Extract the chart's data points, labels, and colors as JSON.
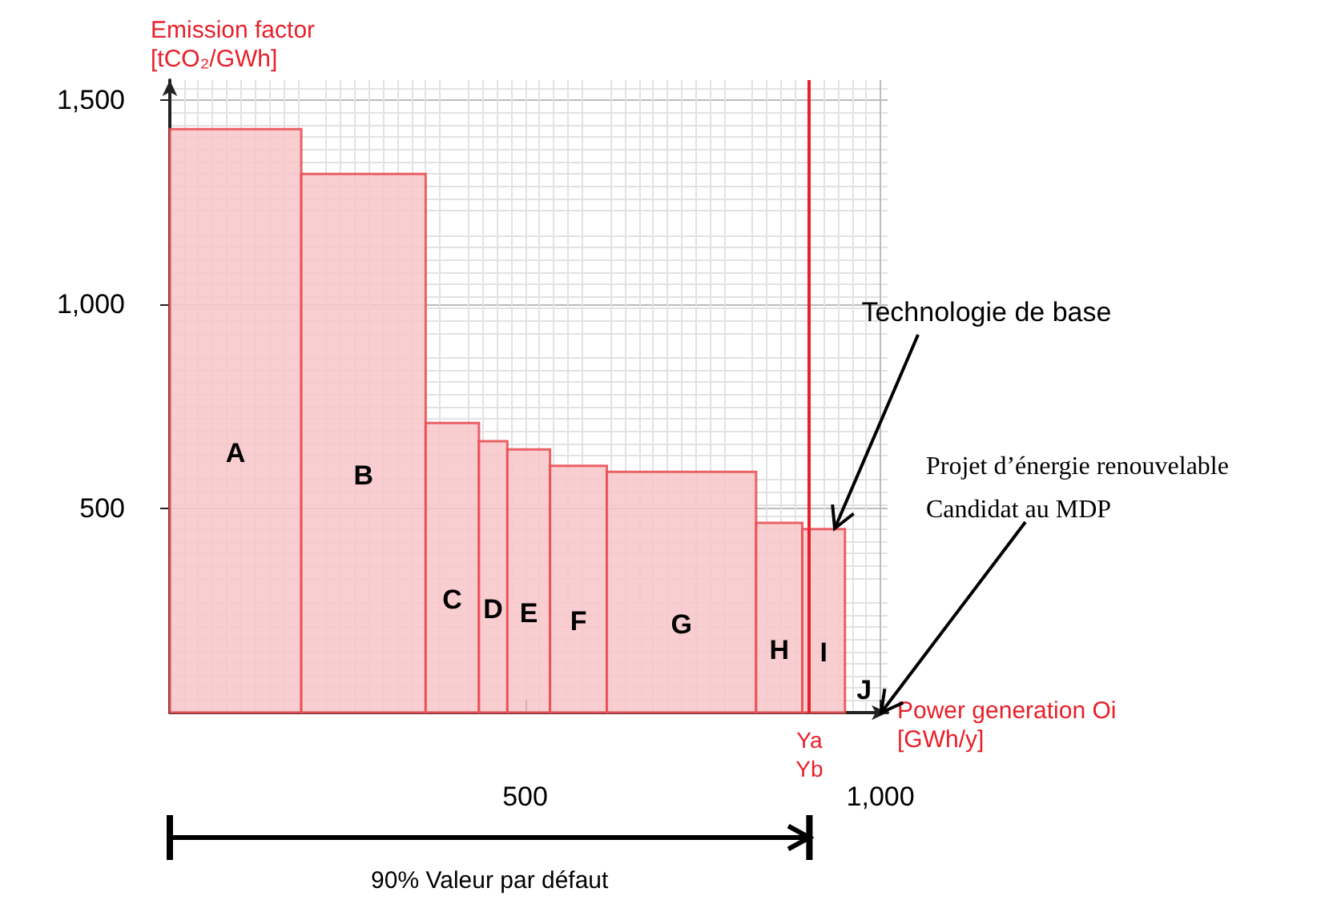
{
  "chart_data": {
    "type": "histogram",
    "xlabel": "Power generation Oi\n[GWh/y]",
    "ylabel": "Emission factor\n[tCO₂/GWh]",
    "bins": [
      0,
      185,
      360,
      435,
      475,
      535,
      615,
      825,
      890,
      950
    ],
    "values": [
      1430,
      1320,
      710,
      665,
      645,
      605,
      590,
      465,
      450
    ],
    "color": "#f8c6c8",
    "xlim": [
      0,
      1010
    ],
    "ylim": [
      0,
      1550
    ],
    "xticks": [
      500,
      {
        "value": 1000,
        "label": "1,000"
      }
    ],
    "yticks": [
      500,
      {
        "value": 1000,
        "label": "1,000"
      },
      {
        "value": 1500,
        "label": "1,500"
      }
    ],
    "grid": true,
    "ref_lines": [
      {
        "axis": "x",
        "value": 900,
        "label": "Ya\nYb",
        "color": "#e8202a"
      }
    ],
    "annotations": [
      "A",
      "B",
      "C",
      "D",
      "E",
      "F",
      "G",
      "H",
      "I",
      "J",
      "Projet d’énergie renouvelable\nCandidat au MDP",
      "90% Valeur par défaut",
      {
        "text": "Technologie de base",
        "x": 935,
        "y": 450
      }
    ]
  }
}
